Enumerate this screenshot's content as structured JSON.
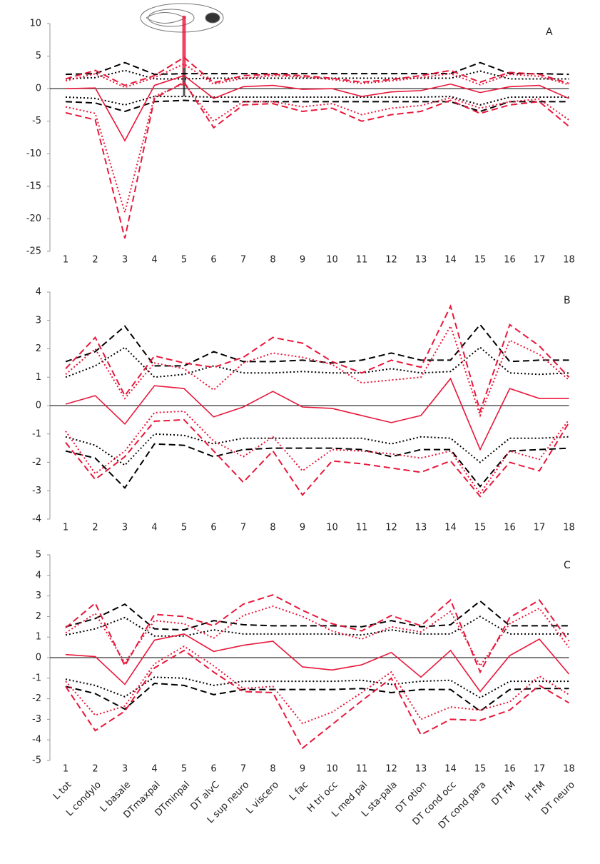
{
  "chart_data": [
    {
      "type": "line",
      "label": "A",
      "categories": [
        1,
        2,
        3,
        4,
        5,
        6,
        7,
        8,
        9,
        10,
        11,
        12,
        13,
        14,
        15,
        16,
        17,
        18
      ],
      "ylim": [
        -25,
        10
      ],
      "yticks": [
        -25,
        -20,
        -15,
        -10,
        -5,
        0,
        5,
        10
      ],
      "reference_line": 0,
      "series": [
        {
          "color": "#000000",
          "dash": "dashed",
          "values": [
            2.2,
            2.3,
            4,
            2.2,
            2.3,
            2.3,
            2.3,
            2.3,
            2.3,
            2.3,
            2.3,
            2.3,
            2.3,
            2.3,
            4,
            2.3,
            2.3,
            2.2
          ]
        },
        {
          "color": "#000000",
          "dash": "dashed",
          "values": [
            -2,
            -2.2,
            -3.5,
            -2,
            -1.8,
            -2,
            -2,
            -2,
            -2,
            -2,
            -2,
            -2,
            -2,
            -2,
            -3.5,
            -2,
            -2,
            -2
          ]
        },
        {
          "color": "#000000",
          "dash": "dotted",
          "values": [
            1.5,
            1.7,
            2.8,
            1.5,
            1.5,
            1.6,
            1.6,
            1.6,
            1.6,
            1.6,
            1.6,
            1.6,
            1.6,
            1.6,
            2.7,
            1.5,
            1.5,
            1.5
          ]
        },
        {
          "color": "#000000",
          "dash": "dotted",
          "values": [
            -1.3,
            -1.5,
            -2.5,
            -1.2,
            -1.2,
            -1.3,
            -1.3,
            -1.3,
            -1.3,
            -1.3,
            -1.3,
            -1.3,
            -1.3,
            -1.2,
            -2.5,
            -1.3,
            -1.3,
            -1.3
          ]
        },
        {
          "color": "#e8173a",
          "dash": "solid",
          "values": [
            0,
            0.1,
            -8,
            0.5,
            2,
            -1.5,
            0.3,
            0.5,
            -0.1,
            0,
            -1.2,
            -0.5,
            -0.3,
            0.7,
            -0.6,
            0.3,
            0.5,
            -1.5
          ]
        },
        {
          "color": "#e8173a",
          "dash": "dashed",
          "values": [
            1.5,
            2.8,
            0.5,
            2,
            4.8,
            0.9,
            2,
            2.2,
            2,
            1.6,
            1,
            1.4,
            2,
            2.8,
            1,
            2.5,
            2.2,
            0.8
          ]
        },
        {
          "color": "#e8173a",
          "dash": "dashed",
          "values": [
            -3.7,
            -4.8,
            -23,
            -1.5,
            1,
            -6,
            -2.5,
            -2.3,
            -3.5,
            -3,
            -5,
            -4,
            -3.5,
            -1.8,
            -3.8,
            -2.5,
            -2,
            -5.8
          ]
        },
        {
          "color": "#e8173a",
          "dash": "dotted",
          "values": [
            1.2,
            2.3,
            0.2,
            1.7,
            3.8,
            0.7,
            1.6,
            2,
            1.8,
            1.4,
            0.8,
            1.2,
            1.7,
            2.3,
            0.6,
            2.2,
            1.9,
            0.6
          ]
        },
        {
          "color": "#e8173a",
          "dash": "dotted",
          "values": [
            -2.8,
            -3.8,
            -19,
            -1.2,
            0.8,
            -5,
            -2,
            -2,
            -2.8,
            -2.3,
            -4,
            -3,
            -2.6,
            -1.4,
            -3,
            -2,
            -1.6,
            -4.8
          ]
        }
      ]
    },
    {
      "type": "line",
      "label": "B",
      "categories": [
        1,
        2,
        3,
        4,
        5,
        6,
        7,
        8,
        9,
        10,
        11,
        12,
        13,
        14,
        15,
        16,
        17,
        18
      ],
      "ylim": [
        -4,
        4
      ],
      "yticks": [
        -4,
        -3,
        -2,
        -1,
        0,
        1,
        2,
        3,
        4
      ],
      "reference_line": 0,
      "series": [
        {
          "color": "#000000",
          "dash": "dashed",
          "values": [
            1.55,
            1.9,
            2.8,
            1.4,
            1.4,
            1.9,
            1.55,
            1.55,
            1.6,
            1.5,
            1.6,
            1.85,
            1.6,
            1.6,
            2.85,
            1.55,
            1.6,
            1.6
          ]
        },
        {
          "color": "#000000",
          "dash": "dashed",
          "values": [
            -1.6,
            -1.85,
            -2.9,
            -1.35,
            -1.4,
            -1.8,
            -1.55,
            -1.5,
            -1.5,
            -1.5,
            -1.55,
            -1.8,
            -1.55,
            -1.55,
            -2.85,
            -1.6,
            -1.55,
            -1.5
          ]
        },
        {
          "color": "#000000",
          "dash": "dotted",
          "values": [
            1,
            1.4,
            2.05,
            1,
            1.1,
            1.4,
            1.15,
            1.15,
            1.2,
            1.15,
            1.15,
            1.3,
            1.15,
            1.2,
            2.05,
            1.15,
            1.1,
            1.15
          ]
        },
        {
          "color": "#000000",
          "dash": "dotted",
          "values": [
            -1.1,
            -1.4,
            -2.1,
            -1,
            -1.05,
            -1.35,
            -1.15,
            -1.15,
            -1.15,
            -1.15,
            -1.15,
            -1.35,
            -1.1,
            -1.15,
            -2,
            -1.15,
            -1.15,
            -1.1
          ]
        },
        {
          "color": "#e8173a",
          "dash": "solid",
          "values": [
            0.05,
            0.35,
            -0.65,
            0.7,
            0.6,
            -0.4,
            -0.05,
            0.5,
            -0.05,
            -0.1,
            -0.35,
            -0.6,
            -0.35,
            0.95,
            -1.55,
            0.6,
            0.25,
            0.25
          ]
        },
        {
          "color": "#e8173a",
          "dash": "dashed",
          "values": [
            1.3,
            2.4,
            0.35,
            1.75,
            1.5,
            1.35,
            1.7,
            2.4,
            2.2,
            1.55,
            1.15,
            1.6,
            1.35,
            3.5,
            -0.2,
            2.85,
            2.1,
            1
          ]
        },
        {
          "color": "#e8173a",
          "dash": "dashed",
          "values": [
            -1.3,
            -2.6,
            -1.8,
            -0.55,
            -0.5,
            -1.6,
            -2.7,
            -1.6,
            -3.15,
            -1.95,
            -2.05,
            -2.2,
            -2.35,
            -1.95,
            -3.2,
            -2,
            -2.3,
            -0.6
          ]
        },
        {
          "color": "#e8173a",
          "dash": "dotted",
          "values": [
            1.1,
            2,
            0.25,
            1.5,
            1.3,
            0.55,
            1.5,
            1.85,
            1.7,
            1.45,
            0.8,
            0.9,
            1,
            2.8,
            -0.35,
            2.3,
            1.8,
            0.9
          ]
        },
        {
          "color": "#e8173a",
          "dash": "dotted",
          "values": [
            -0.9,
            -2.4,
            -1.6,
            -0.25,
            -0.2,
            -1.25,
            -1.8,
            -1.1,
            -2.3,
            -1.55,
            -1.6,
            -1.7,
            -1.85,
            -1.6,
            -3.1,
            -1.6,
            -1.9,
            -0.5
          ]
        }
      ]
    },
    {
      "type": "line",
      "label": "C",
      "categories": [
        1,
        2,
        3,
        4,
        5,
        6,
        7,
        8,
        9,
        10,
        11,
        12,
        13,
        14,
        15,
        16,
        17,
        18
      ],
      "category_names": [
        "L tot",
        "L condylo",
        "L basale",
        "DTmaxpal",
        "DTminpal",
        "DT alvC",
        "L sup neuro",
        "L viscero",
        "L fac",
        "H tri occ",
        "L med pal",
        "L sta-pala",
        "DT otion",
        "DT cond occ",
        "DT cond para",
        "DT FM",
        "H FM",
        "DT neuro"
      ],
      "ylim": [
        -5,
        5
      ],
      "yticks": [
        -5,
        -4,
        -3,
        -2,
        -1,
        0,
        1,
        2,
        3,
        4,
        5
      ],
      "reference_line": 0,
      "series": [
        {
          "color": "#000000",
          "dash": "dashed",
          "values": [
            1.5,
            1.9,
            2.6,
            1.4,
            1.35,
            1.8,
            1.6,
            1.55,
            1.55,
            1.55,
            1.5,
            1.8,
            1.5,
            1.6,
            2.75,
            1.55,
            1.55,
            1.55
          ]
        },
        {
          "color": "#000000",
          "dash": "dashed",
          "values": [
            -1.4,
            -1.75,
            -2.5,
            -1.25,
            -1.35,
            -1.8,
            -1.55,
            -1.55,
            -1.55,
            -1.55,
            -1.5,
            -1.7,
            -1.55,
            -1.55,
            -2.6,
            -1.55,
            -1.5,
            -1.5
          ]
        },
        {
          "color": "#000000",
          "dash": "dotted",
          "values": [
            1.1,
            1.4,
            1.95,
            1.05,
            1.05,
            1.35,
            1.15,
            1.15,
            1.15,
            1.15,
            1.1,
            1.35,
            1.15,
            1.15,
            2,
            1.15,
            1.15,
            1.15
          ]
        },
        {
          "color": "#000000",
          "dash": "dotted",
          "values": [
            -1.05,
            -1.35,
            -1.9,
            -0.95,
            -1,
            -1.35,
            -1.15,
            -1.15,
            -1.15,
            -1.15,
            -1.1,
            -1.3,
            -1.15,
            -1.1,
            -1.95,
            -1.15,
            -1.15,
            -1.15
          ]
        },
        {
          "color": "#e8173a",
          "dash": "solid",
          "values": [
            0.15,
            0.05,
            -1.3,
            0.85,
            1.15,
            0.3,
            0.6,
            0.8,
            -0.45,
            -0.6,
            -0.35,
            0.25,
            -0.95,
            0.35,
            -1.65,
            0.1,
            0.9,
            -0.8
          ]
        },
        {
          "color": "#e8173a",
          "dash": "dashed",
          "values": [
            1.45,
            2.65,
            -0.4,
            2.1,
            2,
            1.55,
            2.6,
            3.05,
            2.3,
            1.65,
            1.3,
            2.05,
            1.55,
            2.8,
            -0.7,
            1.95,
            2.8,
            0.8
          ]
        },
        {
          "color": "#e8173a",
          "dash": "dashed",
          "values": [
            -1.4,
            -3.55,
            -2.6,
            -0.5,
            0.35,
            -0.7,
            -1.65,
            -1.7,
            -4.4,
            -3.25,
            -2.1,
            -1,
            -3.75,
            -3,
            -3.05,
            -2.55,
            -1.35,
            -2.2
          ]
        },
        {
          "color": "#e8173a",
          "dash": "dotted",
          "values": [
            1.2,
            2.15,
            -0.25,
            1.8,
            1.65,
            0.95,
            2.05,
            2.5,
            2,
            1.3,
            0.9,
            1.5,
            1.25,
            2.25,
            -0.4,
            1.65,
            2.4,
            0.5
          ]
        },
        {
          "color": "#e8173a",
          "dash": "dotted",
          "values": [
            -1.15,
            -2.8,
            -2.35,
            -0.3,
            0.55,
            -0.4,
            -1.5,
            -1.4,
            -3.2,
            -2.65,
            -1.7,
            -0.7,
            -3,
            -2.4,
            -2.55,
            -2.15,
            -0.9,
            -1.8
          ]
        }
      ]
    }
  ]
}
